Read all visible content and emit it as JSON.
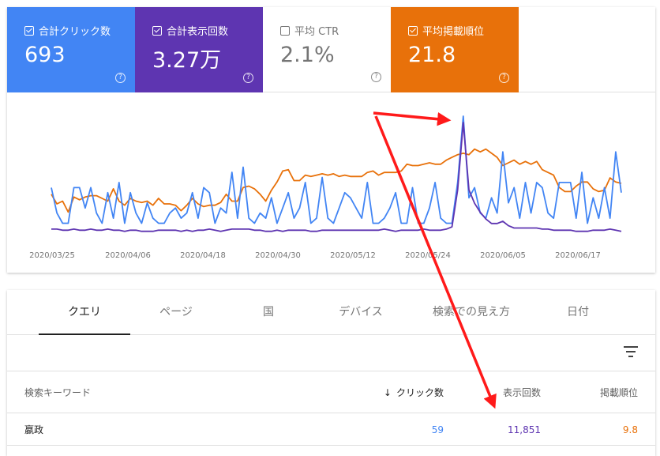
{
  "metrics": [
    {
      "label": "合計クリック数",
      "value": "693",
      "checked": true
    },
    {
      "label": "合計表示回数",
      "value": "3.27万",
      "checked": true
    },
    {
      "label": "平均 CTR",
      "value": "2.1%",
      "checked": false
    },
    {
      "label": "平均掲載順位",
      "value": "21.8",
      "checked": true
    }
  ],
  "help_glyph": "?",
  "colors": {
    "clicks": "#4285f4",
    "impressions": "#5e35b1",
    "ctr": "#ffffff",
    "position": "#e8710a",
    "annotation": "#ff0000"
  },
  "chart_data": {
    "type": "line",
    "x_tick_labels": [
      "2020/03/25",
      "2020/04/06",
      "2020/04/18",
      "2020/04/30",
      "2020/05/12",
      "2020/05/24",
      "2020/06/05",
      "2020/06/17"
    ],
    "x_range": [
      "2020/03/24",
      "2020/06/25"
    ],
    "grid": false,
    "series": [
      {
        "metric": "clicks",
        "values": [
          8,
          3,
          1,
          1,
          8,
          8,
          4,
          8,
          3,
          1,
          7,
          2,
          9,
          1,
          7,
          3,
          1,
          5,
          2,
          1,
          1,
          3,
          4,
          2,
          3,
          7,
          2,
          8,
          7,
          1,
          4,
          3,
          11,
          2,
          12,
          2,
          1,
          3,
          2,
          6,
          1,
          4,
          7,
          2,
          4,
          9,
          1,
          2,
          10,
          2,
          1,
          4,
          7,
          6,
          4,
          2,
          9,
          1,
          1,
          2,
          4,
          7,
          1,
          1,
          8,
          1,
          1,
          4,
          9,
          2,
          1,
          1,
          9,
          22,
          6,
          8,
          3,
          2,
          6,
          3,
          15,
          5,
          8,
          2,
          9,
          3,
          9,
          8,
          3,
          2,
          9,
          9,
          9,
          2,
          11,
          1,
          6,
          2,
          8,
          2,
          15,
          7
        ]
      },
      {
        "metric": "impressions",
        "values": [
          5,
          5,
          4,
          4,
          5,
          4,
          4,
          5,
          4,
          4,
          5,
          4,
          4,
          3,
          4,
          4,
          3,
          3,
          3,
          4,
          4,
          4,
          4,
          3,
          4,
          3,
          4,
          4,
          5,
          4,
          3,
          4,
          5,
          5,
          5,
          5,
          4,
          4,
          3,
          3,
          4,
          3,
          4,
          4,
          4,
          4,
          3,
          3,
          4,
          4,
          4,
          4,
          4,
          4,
          4,
          4,
          4,
          4,
          4,
          5,
          4,
          3,
          4,
          4,
          4,
          4,
          5,
          4,
          4,
          4,
          5,
          7,
          40,
          100,
          40,
          28,
          20,
          14,
          10,
          10,
          12,
          8,
          6,
          6,
          6,
          6,
          6,
          5,
          5,
          4,
          4,
          4,
          4,
          3,
          3,
          3,
          4,
          4,
          4,
          5,
          4,
          3
        ]
      },
      {
        "metric": "position",
        "values": [
          38,
          31,
          33,
          25,
          36,
          34,
          36,
          37,
          37,
          35,
          33,
          42,
          33,
          30,
          35,
          33,
          32,
          33,
          30,
          35,
          31,
          31,
          30,
          26,
          30,
          35,
          31,
          29,
          30,
          30,
          32,
          38,
          33,
          33,
          43,
          44,
          42,
          38,
          33,
          41,
          47,
          55,
          56,
          48,
          48,
          52,
          51,
          52,
          53,
          52,
          53,
          51,
          52,
          51,
          51,
          51,
          54,
          55,
          52,
          54,
          54,
          54,
          55,
          60,
          59,
          59,
          60,
          61,
          60,
          60,
          63,
          65,
          67,
          68,
          67,
          71,
          69,
          71,
          68,
          65,
          59,
          61,
          63,
          60,
          62,
          60,
          62,
          56,
          54,
          52,
          43,
          40,
          40,
          44,
          47,
          47,
          42,
          40,
          41,
          50,
          47,
          46
        ]
      }
    ]
  },
  "tabs": [
    {
      "label": "クエリ",
      "active": true
    },
    {
      "label": "ページ",
      "active": false
    },
    {
      "label": "国",
      "active": false
    },
    {
      "label": "デバイス",
      "active": false
    },
    {
      "label": "検索での見え方",
      "active": false
    },
    {
      "label": "日付",
      "active": false
    }
  ],
  "table": {
    "headers": {
      "keyword": "検索キーワード",
      "clicks": "クリック数",
      "sort_arrow": "↓",
      "impressions": "表示回数",
      "position": "掲載順位"
    },
    "rows": [
      {
        "keyword": "嬴政",
        "clicks": "59",
        "impressions": "11,851",
        "position": "9.8"
      }
    ]
  }
}
